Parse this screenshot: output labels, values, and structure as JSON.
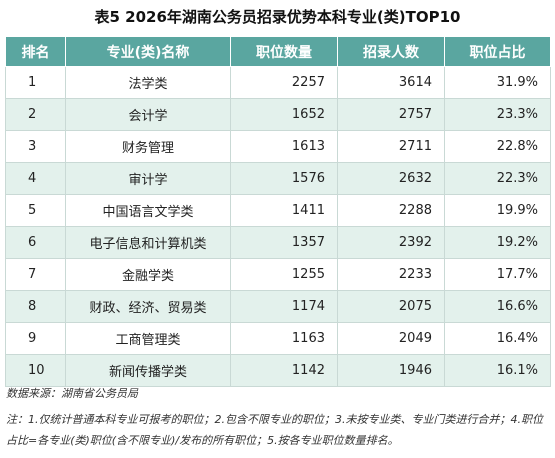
{
  "title": "表5 2026年湖南公务员招录优势本科专业(类)TOP10",
  "headers": [
    "排名",
    "专业(类)名称",
    "职位数量",
    "招录人数",
    "职位占比"
  ],
  "rows": [
    {
      "rank": "1",
      "major": "法学类",
      "positions": "2257",
      "recruits": "3614",
      "share": "31.9%"
    },
    {
      "rank": "2",
      "major": "会计学",
      "positions": "1652",
      "recruits": "2757",
      "share": "23.3%"
    },
    {
      "rank": "3",
      "major": "财务管理",
      "positions": "1613",
      "recruits": "2711",
      "share": "22.8%"
    },
    {
      "rank": "4",
      "major": "审计学",
      "positions": "1576",
      "recruits": "2632",
      "share": "22.3%"
    },
    {
      "rank": "5",
      "major": "中国语言文学类",
      "positions": "1411",
      "recruits": "2288",
      "share": "19.9%"
    },
    {
      "rank": "6",
      "major": "电子信息和计算机类",
      "positions": "1357",
      "recruits": "2392",
      "share": "19.2%"
    },
    {
      "rank": "7",
      "major": "金融学类",
      "positions": "1255",
      "recruits": "2233",
      "share": "17.7%"
    },
    {
      "rank": "8",
      "major": "财政、经济、贸易类",
      "positions": "1174",
      "recruits": "2075",
      "share": "16.6%"
    },
    {
      "rank": "9",
      "major": "工商管理类",
      "positions": "1163",
      "recruits": "2049",
      "share": "16.4%"
    },
    {
      "rank": "10",
      "major": "新闻传播学类",
      "positions": "1142",
      "recruits": "1946",
      "share": "16.1%"
    }
  ],
  "source": "数据来源：湖南省公务员局",
  "note": "注：1.仅统计普通本科专业可报考的职位；2.包含不限专业的职位；3.未按专业类、专业门类进行合并；4.职位占比=各专业(类)职位(含不限专业)/发布的所有职位；5.按各专业职位数量排名。"
}
